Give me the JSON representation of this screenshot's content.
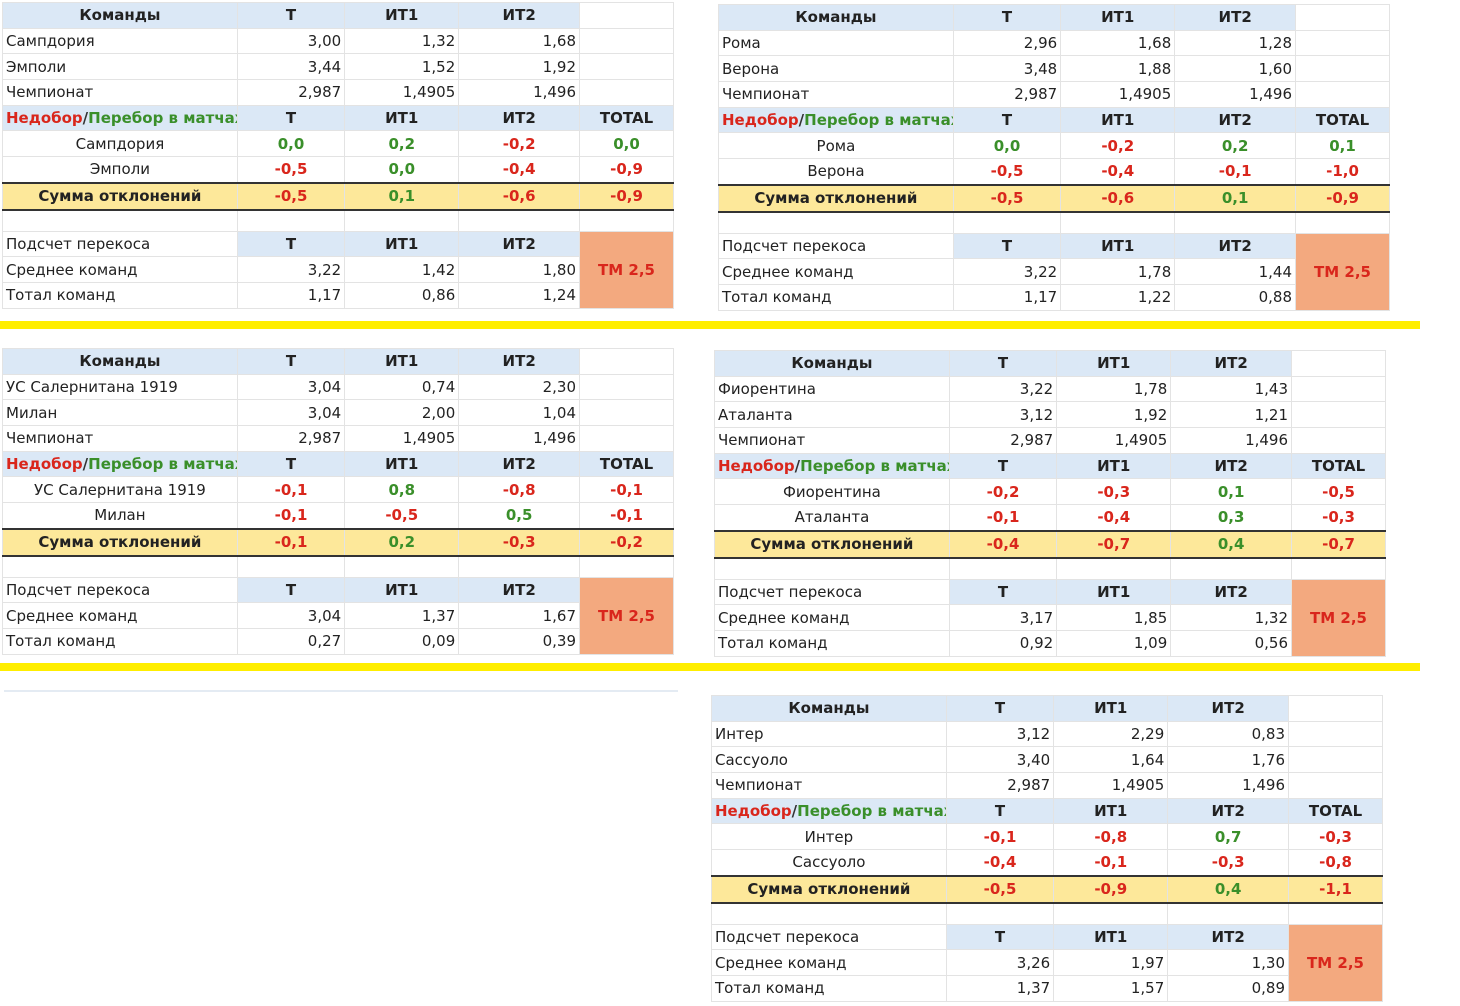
{
  "labels": {
    "teams": "Команды",
    "t": "Т",
    "it1": "ИТ1",
    "it2": "ИТ2",
    "total": "TOTAL",
    "under": "Недобор",
    "slash": "/",
    "over": "Перебор в матчах",
    "sum": "Сумма отклонений",
    "skew": "Подсчет перекоса",
    "avg": "Среднее команд",
    "tot": "Тотал команд",
    "league": "Чемпионат"
  },
  "colors": {
    "header": "#dbe8f6",
    "sum_row": "#fde89a",
    "tm_cell": "#f3a97f",
    "red": "#d9261c",
    "green": "#3a8f2a",
    "separator": "#ffee00"
  },
  "matches": [
    {
      "teams": [
        {
          "name": "Сампдория",
          "t": "3,00",
          "it1": "1,32",
          "it2": "1,68"
        },
        {
          "name": "Эмполи",
          "t": "3,44",
          "it1": "1,52",
          "it2": "1,92"
        }
      ],
      "league": {
        "t": "2,987",
        "it1": "1,4905",
        "it2": "1,496"
      },
      "devs": [
        {
          "name": "Сампдория",
          "t": "0,0",
          "it1": "0,2",
          "it2": "-0,2",
          "total": "0,0"
        },
        {
          "name": "Эмполи",
          "t": "-0,5",
          "it1": "0,0",
          "it2": "-0,4",
          "total": "-0,9"
        }
      ],
      "sum": {
        "t": "-0,5",
        "it1": "0,1",
        "it2": "-0,6",
        "total": "-0,9"
      },
      "avg": {
        "t": "3,22",
        "it1": "1,42",
        "it2": "1,80"
      },
      "tot": {
        "t": "1,17",
        "it1": "0,86",
        "it2": "1,24"
      },
      "verdict": "ТМ 2,5"
    },
    {
      "teams": [
        {
          "name": "Рома",
          "t": "2,96",
          "it1": "1,68",
          "it2": "1,28"
        },
        {
          "name": "Верона",
          "t": "3,48",
          "it1": "1,88",
          "it2": "1,60"
        }
      ],
      "league": {
        "t": "2,987",
        "it1": "1,4905",
        "it2": "1,496"
      },
      "devs": [
        {
          "name": "Рома",
          "t": "0,0",
          "it1": "-0,2",
          "it2": "0,2",
          "total": "0,1"
        },
        {
          "name": "Верона",
          "t": "-0,5",
          "it1": "-0,4",
          "it2": "-0,1",
          "total": "-1,0"
        }
      ],
      "sum": {
        "t": "-0,5",
        "it1": "-0,6",
        "it2": "0,1",
        "total": "-0,9"
      },
      "avg": {
        "t": "3,22",
        "it1": "1,78",
        "it2": "1,44"
      },
      "tot": {
        "t": "1,17",
        "it1": "1,22",
        "it2": "0,88"
      },
      "verdict": "ТМ 2,5"
    },
    {
      "teams": [
        {
          "name": "УС Салернитана 1919",
          "t": "3,04",
          "it1": "0,74",
          "it2": "2,30"
        },
        {
          "name": "Милан",
          "t": "3,04",
          "it1": "2,00",
          "it2": "1,04"
        }
      ],
      "league": {
        "t": "2,987",
        "it1": "1,4905",
        "it2": "1,496"
      },
      "devs": [
        {
          "name": "УС Салернитана 1919",
          "t": "-0,1",
          "it1": "0,8",
          "it2": "-0,8",
          "total": "-0,1"
        },
        {
          "name": "Милан",
          "t": "-0,1",
          "it1": "-0,5",
          "it2": "0,5",
          "total": "-0,1"
        }
      ],
      "sum": {
        "t": "-0,1",
        "it1": "0,2",
        "it2": "-0,3",
        "total": "-0,2"
      },
      "avg": {
        "t": "3,04",
        "it1": "1,37",
        "it2": "1,67"
      },
      "tot": {
        "t": "0,27",
        "it1": "0,09",
        "it2": "0,39"
      },
      "verdict": "ТМ 2,5"
    },
    {
      "teams": [
        {
          "name": "Фиорентина",
          "t": "3,22",
          "it1": "1,78",
          "it2": "1,43"
        },
        {
          "name": "Аталанта",
          "t": "3,12",
          "it1": "1,92",
          "it2": "1,21"
        }
      ],
      "league": {
        "t": "2,987",
        "it1": "1,4905",
        "it2": "1,496"
      },
      "devs": [
        {
          "name": "Фиорентина",
          "t": "-0,2",
          "it1": "-0,3",
          "it2": "0,1",
          "total": "-0,5"
        },
        {
          "name": "Аталанта",
          "t": "-0,1",
          "it1": "-0,4",
          "it2": "0,3",
          "total": "-0,3"
        }
      ],
      "sum": {
        "t": "-0,4",
        "it1": "-0,7",
        "it2": "0,4",
        "total": "-0,7"
      },
      "avg": {
        "t": "3,17",
        "it1": "1,85",
        "it2": "1,32"
      },
      "tot": {
        "t": "0,92",
        "it1": "1,09",
        "it2": "0,56"
      },
      "verdict": "ТМ 2,5"
    },
    {
      "teams": [
        {
          "name": "Интер",
          "t": "3,12",
          "it1": "2,29",
          "it2": "0,83"
        },
        {
          "name": "Сассуоло",
          "t": "3,40",
          "it1": "1,64",
          "it2": "1,76"
        }
      ],
      "league": {
        "t": "2,987",
        "it1": "1,4905",
        "it2": "1,496"
      },
      "devs": [
        {
          "name": "Интер",
          "t": "-0,1",
          "it1": "-0,8",
          "it2": "0,7",
          "total": "-0,3"
        },
        {
          "name": "Сассуоло",
          "t": "-0,4",
          "it1": "-0,1",
          "it2": "-0,3",
          "total": "-0,8"
        }
      ],
      "sum": {
        "t": "-0,5",
        "it1": "-0,9",
        "it2": "0,4",
        "total": "-1,1"
      },
      "avg": {
        "t": "3,26",
        "it1": "1,97",
        "it2": "1,30"
      },
      "tot": {
        "t": "1,37",
        "it1": "1,57",
        "it2": "0,89"
      },
      "verdict": "ТМ 2,5"
    }
  ]
}
